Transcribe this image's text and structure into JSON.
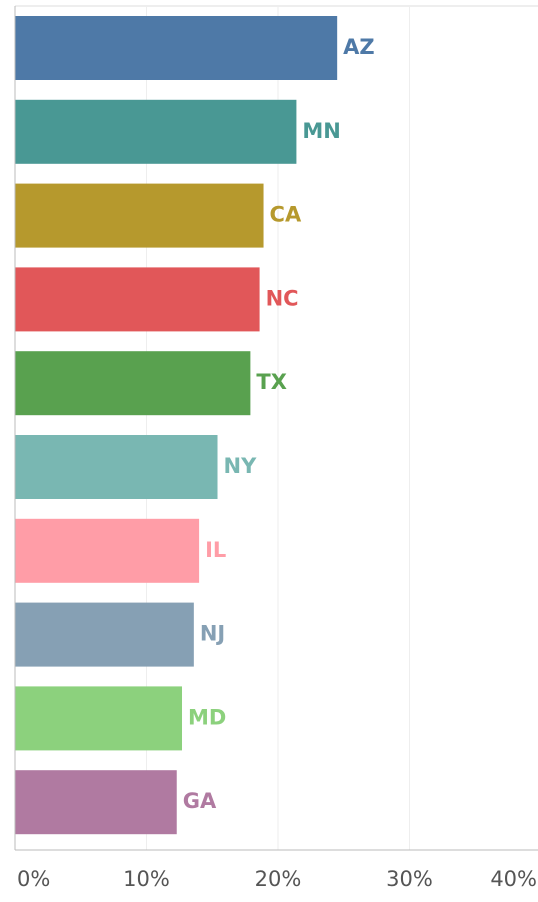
{
  "chart_data": {
    "type": "bar",
    "orientation": "horizontal",
    "categories": [
      "AZ",
      "MN",
      "CA",
      "NC",
      "TX",
      "NY",
      "IL",
      "NJ",
      "MD",
      "GA"
    ],
    "values": [
      24.5,
      21.4,
      18.9,
      18.6,
      17.9,
      15.4,
      14.0,
      13.6,
      12.7,
      12.3
    ],
    "colors": [
      "#4e79a7",
      "#499894",
      "#b6992d",
      "#e15759",
      "#59a14f",
      "#79b7b2",
      "#ff9da7",
      "#86a0b4",
      "#8cd17d",
      "#b07aa1"
    ],
    "xlim": [
      0,
      40
    ],
    "xticks": [
      {
        "value": 0,
        "label": "0%"
      },
      {
        "value": 10,
        "label": "10%"
      },
      {
        "value": 20,
        "label": "20%"
      },
      {
        "value": 30,
        "label": "30%"
      },
      {
        "value": 40,
        "label": "40%"
      }
    ],
    "grid": true
  }
}
